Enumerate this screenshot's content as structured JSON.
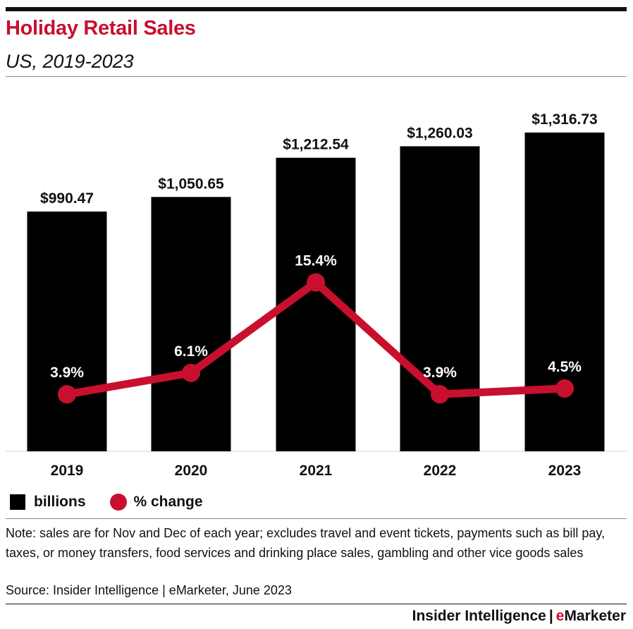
{
  "header": {
    "title": "Holiday Retail Sales",
    "subtitle": "US, 2019-2023"
  },
  "legend": {
    "bars_label": "billions",
    "line_label": "% change"
  },
  "footer": {
    "note": "Note: sales are for Nov and Dec of each year; excludes travel and event tickets, payments such as bill pay, taxes, or money transfers, food services and drinking place sales, gambling and other vice goods sales",
    "source": "Source: Insider Intelligence | eMarketer, June 2023",
    "brand_part1": "Insider Intelligence",
    "brand_sep": "|",
    "brand_e": "e",
    "brand_rest": "Marketer"
  },
  "colors": {
    "bar": "#000000",
    "line": "#c8102e",
    "title": "#c8102e"
  },
  "chart_data": {
    "type": "bar",
    "categories": [
      "2019",
      "2020",
      "2021",
      "2022",
      "2023"
    ],
    "series": [
      {
        "name": "billions",
        "type": "bar",
        "values": [
          990.47,
          1050.65,
          1212.54,
          1260.03,
          1316.73
        ],
        "labels": [
          "$990.47",
          "$1,050.65",
          "$1,212.54",
          "$1,260.03",
          "$1,316.73"
        ]
      },
      {
        "name": "% change",
        "type": "line",
        "values": [
          3.9,
          6.1,
          15.4,
          3.9,
          4.5
        ],
        "labels": [
          "3.9%",
          "6.1%",
          "15.4%",
          "3.9%",
          "4.5%"
        ]
      }
    ],
    "title": "Holiday Retail Sales",
    "subtitle": "US, 2019-2023",
    "legend": "bottom-left",
    "grid": false
  }
}
